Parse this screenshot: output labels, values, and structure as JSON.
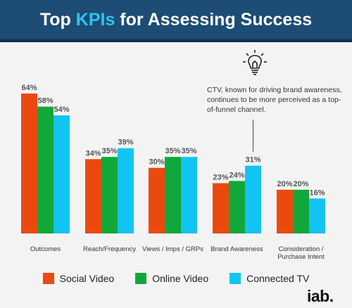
{
  "header": {
    "title_before": "Top ",
    "title_highlight": "KPIs",
    "title_after": " for Assessing Success"
  },
  "annotation": {
    "text": "CTV, known for driving brand awareness, continues to be more perceived as a top-of-funnel channel.",
    "icon": "lightbulb-icon"
  },
  "logo": {
    "text": "iab."
  },
  "colors": {
    "header_bg": "#1d4c74",
    "highlight": "#2ec4f1",
    "social": "#ea4a0f",
    "online": "#10a83a",
    "ctv": "#12c4f2"
  },
  "chart_data": {
    "type": "bar",
    "categories": [
      "Outcomes",
      "Reach/Frequency",
      "Views / Imps / GRPs",
      "Brand Awareness",
      "Consideration / Purchase Intent"
    ],
    "category_lines": [
      [
        "Outcomes"
      ],
      [
        "Reach/Frequency"
      ],
      [
        "Views / Imps / GRPs"
      ],
      [
        "Brand Awareness"
      ],
      [
        "Consideration /",
        "Purchase Intent"
      ]
    ],
    "series": [
      {
        "name": "Social Video",
        "color": "#ea4a0f",
        "values": [
          64,
          34,
          30,
          23,
          20
        ],
        "labels": [
          "64%",
          "34%",
          "30%",
          "23%",
          "20%"
        ]
      },
      {
        "name": "Online Video",
        "color": "#10a83a",
        "values": [
          58,
          35,
          35,
          24,
          20
        ],
        "labels": [
          "58%",
          "35%",
          "35%",
          "24%",
          "20%"
        ]
      },
      {
        "name": "Connected TV",
        "color": "#12c4f2",
        "values": [
          54,
          39,
          35,
          31,
          16
        ],
        "labels": [
          "54%",
          "39%",
          "35%",
          "31%",
          "16%"
        ]
      }
    ],
    "ylim": [
      0,
      64
    ],
    "legend_position": "bottom",
    "grid": false
  }
}
